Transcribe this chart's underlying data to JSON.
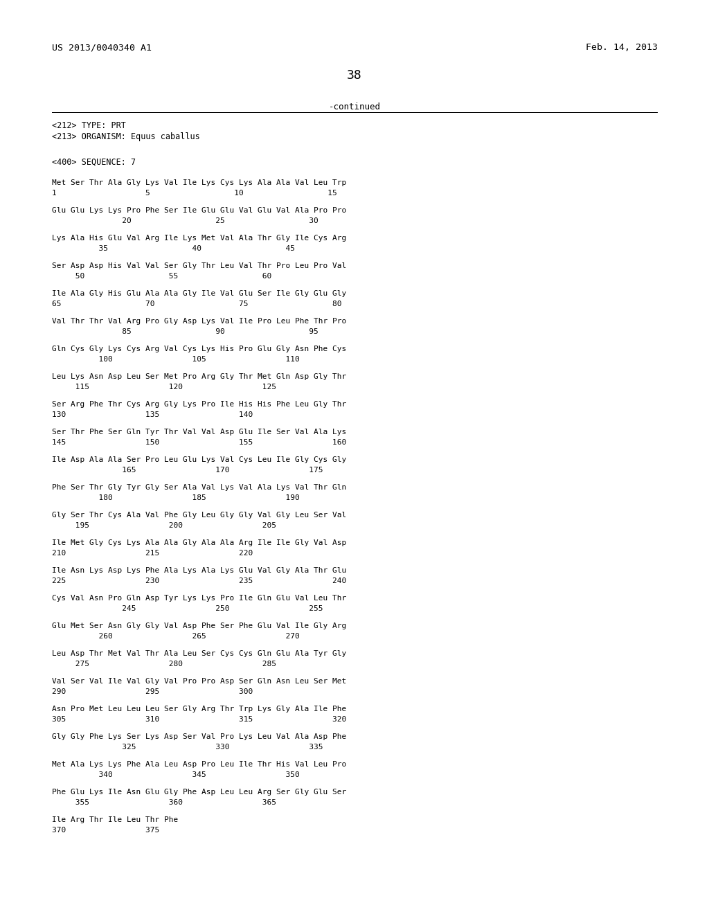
{
  "patent_number": "US 2013/0040340 A1",
  "date": "Feb. 14, 2013",
  "page_number": "38",
  "continued_text": "-continued",
  "metadata_lines": [
    "<212> TYPE: PRT",
    "<213> ORGANISM: Equus caballus",
    "",
    "<400> SEQUENCE: 7"
  ],
  "sequence_blocks": [
    [
      "Met Ser Thr Ala Gly Lys Val Ile Lys Cys Lys Ala Ala Val Leu Trp",
      "1                   5                  10                  15"
    ],
    [
      "Glu Glu Lys Lys Pro Phe Ser Ile Glu Glu Val Glu Val Ala Pro Pro",
      "               20                  25                  30"
    ],
    [
      "Lys Ala His Glu Val Arg Ile Lys Met Val Ala Thr Gly Ile Cys Arg",
      "          35                  40                  45"
    ],
    [
      "Ser Asp Asp His Val Val Ser Gly Thr Leu Val Thr Pro Leu Pro Val",
      "     50                  55                  60"
    ],
    [
      "Ile Ala Gly His Glu Ala Ala Gly Ile Val Glu Ser Ile Gly Glu Gly",
      "65                  70                  75                  80"
    ],
    [
      "Val Thr Thr Val Arg Pro Gly Asp Lys Val Ile Pro Leu Phe Thr Pro",
      "               85                  90                  95"
    ],
    [
      "Gln Cys Gly Lys Cys Arg Val Cys Lys His Pro Glu Gly Asn Phe Cys",
      "          100                 105                 110"
    ],
    [
      "Leu Lys Asn Asp Leu Ser Met Pro Arg Gly Thr Met Gln Asp Gly Thr",
      "     115                 120                 125"
    ],
    [
      "Ser Arg Phe Thr Cys Arg Gly Lys Pro Ile His His Phe Leu Gly Thr",
      "130                 135                 140"
    ],
    [
      "Ser Thr Phe Ser Gln Tyr Thr Val Val Asp Glu Ile Ser Val Ala Lys",
      "145                 150                 155                 160"
    ],
    [
      "Ile Asp Ala Ala Ser Pro Leu Glu Lys Val Cys Leu Ile Gly Cys Gly",
      "               165                 170                 175"
    ],
    [
      "Phe Ser Thr Gly Tyr Gly Ser Ala Val Lys Val Ala Lys Val Thr Gln",
      "          180                 185                 190"
    ],
    [
      "Gly Ser Thr Cys Ala Val Phe Gly Leu Gly Gly Val Gly Leu Ser Val",
      "     195                 200                 205"
    ],
    [
      "Ile Met Gly Cys Lys Ala Ala Gly Ala Ala Arg Ile Ile Gly Val Asp",
      "210                 215                 220"
    ],
    [
      "Ile Asn Lys Asp Lys Phe Ala Lys Ala Lys Glu Val Gly Ala Thr Glu",
      "225                 230                 235                 240"
    ],
    [
      "Cys Val Asn Pro Gln Asp Tyr Lys Lys Pro Ile Gln Glu Val Leu Thr",
      "               245                 250                 255"
    ],
    [
      "Glu Met Ser Asn Gly Gly Val Asp Phe Ser Phe Glu Val Ile Gly Arg",
      "          260                 265                 270"
    ],
    [
      "Leu Asp Thr Met Val Thr Ala Leu Ser Cys Cys Gln Glu Ala Tyr Gly",
      "     275                 280                 285"
    ],
    [
      "Val Ser Val Ile Val Gly Val Pro Pro Asp Ser Gln Asn Leu Ser Met",
      "290                 295                 300"
    ],
    [
      "Asn Pro Met Leu Leu Leu Ser Gly Arg Thr Trp Lys Gly Ala Ile Phe",
      "305                 310                 315                 320"
    ],
    [
      "Gly Gly Phe Lys Ser Lys Asp Ser Val Pro Lys Leu Val Ala Asp Phe",
      "               325                 330                 335"
    ],
    [
      "Met Ala Lys Lys Phe Ala Leu Asp Pro Leu Ile Thr His Val Leu Pro",
      "          340                 345                 350"
    ],
    [
      "Phe Glu Lys Ile Asn Glu Gly Phe Asp Leu Leu Arg Ser Gly Glu Ser",
      "     355                 360                 365"
    ],
    [
      "Ile Arg Thr Ile Leu Thr Phe",
      "370                 375"
    ]
  ],
  "bg_color": "#ffffff",
  "text_color": "#000000"
}
